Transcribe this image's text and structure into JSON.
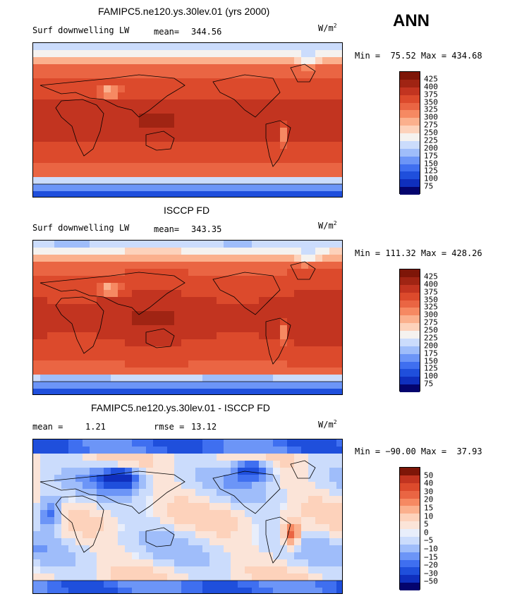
{
  "header": {
    "season": "ANN"
  },
  "palettes": {
    "abs": [
      "#04046e",
      "#0f2fbe",
      "#1f4fdc",
      "#3f6ff0",
      "#6c95f7",
      "#9fbdfa",
      "#cbdcfc",
      "#f5f2ef",
      "#fdd2bb",
      "#fbb08d",
      "#f68962",
      "#ea6543",
      "#dc4a2c",
      "#c23420",
      "#a02413",
      "#7e1608"
    ],
    "diff": [
      "#04046e",
      "#0f2fbe",
      "#1f4fdc",
      "#3f6ff0",
      "#6c95f7",
      "#9fbdfa",
      "#cbdcfc",
      "#e8eefb",
      "#fbe4d8",
      "#fdd2bb",
      "#fbb08d",
      "#f68962",
      "#ea6543",
      "#dc4a2c",
      "#c23420",
      "#7e1608"
    ]
  },
  "panels": [
    {
      "title": "FAMIPC5.ne120.ys.30lev.01 (yrs 2000)",
      "left_label": "Surf downwelling LW",
      "stat_label": "mean=",
      "stat_value": "344.56",
      "units": "W/m",
      "units_exp": "2",
      "minmax": "Min =  75.52 Max = 434.68"
    },
    {
      "title": "ISCCP FD",
      "left_label": "Surf downwelling LW",
      "stat_label": "mean=",
      "stat_value": "343.35",
      "units": "W/m",
      "units_exp": "2",
      "minmax": "Min = 111.32 Max = 428.26"
    },
    {
      "title": "FAMIPC5.ne120.ys.30lev.01 - ISCCP FD",
      "left_label": "mean =",
      "left_value": "1.21",
      "stat_label": "rmse =",
      "stat_value": "13.12",
      "units": "W/m",
      "units_exp": "2",
      "minmax": "Min = −90.00 Max =  37.93"
    }
  ],
  "chart_data": [
    {
      "type": "heatmap",
      "title": "FAMIPC5.ne120.ys.30lev.01 (yrs 2000)",
      "variable": "Surf downwelling LW",
      "units": "W/m2",
      "mean": 344.56,
      "min": 75.52,
      "max": 434.68,
      "colorbar_levels": [
        "425",
        "400",
        "375",
        "350",
        "325",
        "300",
        "275",
        "250",
        "225",
        "200",
        "175",
        "150",
        "125",
        "100",
        "75"
      ]
    },
    {
      "type": "heatmap",
      "title": "ISCCP FD",
      "variable": "Surf downwelling LW",
      "units": "W/m2",
      "mean": 343.35,
      "min": 111.32,
      "max": 428.26,
      "colorbar_levels": [
        "425",
        "400",
        "375",
        "350",
        "325",
        "300",
        "275",
        "250",
        "225",
        "200",
        "175",
        "150",
        "125",
        "100",
        "75"
      ]
    },
    {
      "type": "heatmap",
      "title": "FAMIPC5.ne120.ys.30lev.01 - ISCCP FD",
      "units": "W/m2",
      "mean": 1.21,
      "rmse": 13.12,
      "min": -90.0,
      "max": 37.93,
      "colorbar_levels": [
        "50",
        "40",
        "30",
        "20",
        "15",
        "10",
        "5",
        "0",
        "−5",
        "−10",
        "−15",
        "−20",
        "−30",
        "−50"
      ]
    }
  ]
}
